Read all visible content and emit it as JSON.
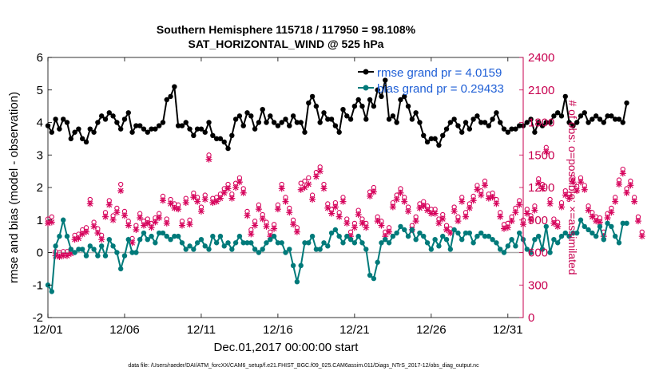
{
  "title": {
    "line1": "Southern Hemisphere 115718 / 117950 = 98.108%",
    "line2": "SAT_HORIZONTAL_WIND @ 525 hPa"
  },
  "footnote": "data file: /Users/raeder/DAI/ATM_forcXX/CAM6_setup/f.e21.FHIST_BGC.f09_025.CAM6assim.011/Diags_NTrS_2017-12/obs_diag_output.nc",
  "colors": {
    "rmse": "#000000",
    "bias": "#007a7a",
    "obs": "#d6005a",
    "zero_line": "#aaaaaa",
    "right_axis": "#c8004f",
    "legend_text": "#1f5fd6"
  },
  "chart_data": {
    "type": "line",
    "title": "Southern Hemisphere 115718 / 117950 = 98.108%",
    "subtitle": "SAT_HORIZONTAL_WIND @ 525 hPa",
    "xlabel": "Dec.01,2017 00:00:00 start",
    "ylabel": "rmse and bias (model - observation)",
    "y2label": "# of obs: o=possible; ×=assimilated",
    "xlim": [
      0,
      31
    ],
    "ylim": [
      -2,
      6
    ],
    "y2lim": [
      0,
      2400
    ],
    "xticks": [
      0,
      5,
      10,
      15,
      20,
      25,
      30
    ],
    "xticklabels": [
      "12/01",
      "12/06",
      "12/11",
      "12/16",
      "12/21",
      "12/26",
      "12/31"
    ],
    "yticks": [
      -2,
      -1,
      0,
      1,
      2,
      3,
      4,
      5,
      6
    ],
    "y2ticks": [
      0,
      300,
      600,
      900,
      1200,
      1500,
      1800,
      2100,
      2400
    ],
    "legend": {
      "position": "top-right",
      "entries": [
        "rmse grand pr = 4.0159",
        "bias grand pr = 0.29433"
      ]
    },
    "time_step_days": 0.25,
    "series": [
      {
        "name": "rmse",
        "axis": "left",
        "values": [
          3.9,
          3.7,
          4.1,
          3.8,
          4.1,
          4.0,
          3.5,
          3.7,
          3.8,
          3.5,
          3.4,
          3.8,
          3.7,
          4.0,
          4.2,
          4.1,
          4.3,
          4.2,
          4.0,
          3.8,
          4.1,
          4.3,
          3.7,
          3.9,
          3.9,
          3.8,
          3.7,
          3.8,
          3.8,
          3.9,
          4.0,
          4.7,
          4.8,
          5.1,
          3.9,
          3.9,
          4.0,
          3.8,
          3.6,
          3.8,
          3.8,
          3.7,
          4.0,
          3.6,
          3.5,
          3.5,
          3.4,
          3.2,
          3.6,
          4.1,
          4.2,
          3.9,
          4.3,
          4.2,
          3.8,
          4.0,
          4.4,
          4.0,
          4.2,
          4.0,
          3.9,
          4.0,
          4.1,
          3.9,
          4.2,
          4.0,
          4.0,
          3.7,
          4.6,
          4.8,
          4.5,
          4.0,
          4.3,
          4.1,
          4.1,
          3.9,
          3.7,
          4.4,
          4.2,
          4.1,
          4.5,
          4.7,
          4.5,
          4.1,
          4.7,
          4.5,
          5.0,
          4.8,
          5.3,
          4.1,
          4.2,
          4.0,
          4.7,
          4.8,
          4.5,
          4.1,
          4.3,
          4.0,
          3.6,
          3.4,
          3.5,
          3.5,
          3.3,
          3.6,
          3.8,
          4.0,
          4.1,
          3.9,
          3.7,
          4.0,
          3.8,
          4.1,
          4.2,
          4.0,
          4.0,
          3.9,
          4.1,
          4.3,
          4.0,
          3.8,
          3.7,
          3.8,
          3.8,
          3.9,
          3.9,
          4.0,
          4.1,
          3.7,
          4.0,
          3.9,
          4.0,
          4.0,
          4.2,
          4.3,
          4.2,
          4.8,
          4.0,
          3.9,
          4.0,
          4.2,
          4.3,
          4.0,
          4.1,
          4.2,
          4.1,
          4.0,
          4.2,
          4.2,
          4.1,
          4.1,
          4.0,
          4.6
        ]
      },
      {
        "name": "bias",
        "axis": "left",
        "values": [
          -1.0,
          -1.2,
          0.2,
          0.5,
          1.0,
          0.5,
          0.1,
          0.0,
          0.1,
          0.1,
          -0.1,
          0.2,
          0.1,
          -0.1,
          0.2,
          -0.1,
          0.4,
          0.2,
          0.0,
          -0.5,
          -0.1,
          0.4,
          0.0,
          0.0,
          0.4,
          0.6,
          0.4,
          0.5,
          0.3,
          0.6,
          0.6,
          0.5,
          0.4,
          0.5,
          0.5,
          0.3,
          0.1,
          0.2,
          0.1,
          0.3,
          0.4,
          0.2,
          0.1,
          0.5,
          0.3,
          0.5,
          0.2,
          0.3,
          0.1,
          0.3,
          0.5,
          0.3,
          0.3,
          0.3,
          0.1,
          0.0,
          0.1,
          0.3,
          0.4,
          0.5,
          0.3,
          0.3,
          0.0,
          0.1,
          -0.4,
          -0.9,
          -0.4,
          0.3,
          0.3,
          0.5,
          0.1,
          0.1,
          0.3,
          0.2,
          0.6,
          0.7,
          0.5,
          0.3,
          0.5,
          0.4,
          0.3,
          0.5,
          0.3,
          0.1,
          -0.7,
          -0.8,
          -0.3,
          0.3,
          0.4,
          0.3,
          0.5,
          0.6,
          0.8,
          0.7,
          0.5,
          0.7,
          0.4,
          0.6,
          0.5,
          0.3,
          0.1,
          0.4,
          0.2,
          0.5,
          0.4,
          0.1,
          0.7,
          0.6,
          0.4,
          0.6,
          0.6,
          0.3,
          0.5,
          0.6,
          0.5,
          0.5,
          0.4,
          0.3,
          0.1,
          0.0,
          0.2,
          0.4,
          0.2,
          0.6,
          0.4,
          0.1,
          0.0,
          0.4,
          0.5,
          0.1,
          0.8,
          0.0,
          0.4,
          0.3,
          0.5,
          0.6,
          0.5,
          0.6,
          0.6,
          1.0,
          0.8,
          0.7,
          0.6,
          0.5,
          0.8,
          0.4,
          0.9,
          0.8,
          0.5,
          0.3,
          0.9,
          0.9
        ]
      },
      {
        "name": "obs_possible",
        "axis": "right",
        "marker": "o",
        "values": [
          880,
          900,
          580,
          570,
          580,
          580,
          600,
          730,
          740,
          780,
          800,
          1060,
          850,
          790,
          730,
          940,
          1050,
          910,
          980,
          1200,
          950,
          860,
          700,
          820,
          930,
          860,
          880,
          840,
          890,
          930,
          1090,
          880,
          1060,
          1020,
          1010,
          860,
          1070,
          870,
          1120,
          1080,
          990,
          1100,
          1470,
          1070,
          1080,
          1110,
          1160,
          1200,
          1110,
          1210,
          1260,
          1160,
          950,
          780,
          860,
          1010,
          920,
          850,
          760,
          830,
          1010,
          1200,
          1080,
          980,
          870,
          800,
          1210,
          1230,
          1260,
          1100,
          1310,
          1360,
          1200,
          1020,
          970,
          1030,
          940,
          1080,
          880,
          760,
          840,
          960,
          880,
          840,
          1130,
          1170,
          900,
          860,
          760,
          800,
          1030,
          1100,
          1160,
          1080,
          990,
          820,
          900,
          1020,
          1040,
          1000,
          970,
          970,
          880,
          920,
          820,
          790,
          990,
          900,
          1080,
          940,
          1020,
          1090,
          1190,
          1140,
          1230,
          1110,
          1120,
          1060,
          940,
          830,
          840,
          900,
          980,
          1050,
          870,
          970,
          910,
          1000,
          1250,
          1200,
          1540,
          1060,
          880,
          850,
          1030,
          1140,
          1110,
          1260,
          1180,
          1260,
          1190,
          1000,
          940,
          900,
          890,
          760,
          930,
          980,
          1080,
          1240,
          1340,
          1160,
          1230,
          1080,
          900,
          760
        ]
      },
      {
        "name": "obs_assimilated",
        "axis": "right",
        "marker": "x",
        "values": [
          870,
          880,
          570,
          560,
          570,
          570,
          590,
          720,
          730,
          770,
          790,
          1050,
          840,
          780,
          720,
          930,
          1040,
          900,
          970,
          1170,
          940,
          850,
          690,
          810,
          920,
          850,
          870,
          830,
          880,
          920,
          1080,
          870,
          1050,
          1010,
          1000,
          850,
          1060,
          860,
          1110,
          1070,
          980,
          1090,
          1460,
          1060,
          1070,
          1100,
          1150,
          1190,
          1100,
          1200,
          1250,
          1150,
          940,
          770,
          850,
          1000,
          910,
          840,
          750,
          820,
          1000,
          1190,
          1070,
          970,
          860,
          790,
          1180,
          1200,
          1230,
          1090,
          1300,
          1350,
          1190,
          1010,
          960,
          1020,
          930,
          1070,
          870,
          750,
          830,
          950,
          870,
          830,
          1120,
          1160,
          890,
          850,
          750,
          790,
          1020,
          1090,
          1150,
          1070,
          980,
          810,
          890,
          1010,
          1030,
          990,
          960,
          960,
          870,
          910,
          810,
          780,
          980,
          890,
          1070,
          930,
          1010,
          1080,
          1180,
          1130,
          1220,
          1100,
          1110,
          1050,
          930,
          820,
          830,
          890,
          970,
          1040,
          860,
          960,
          900,
          990,
          1240,
          1190,
          1530,
          1050,
          870,
          840,
          1020,
          1130,
          1100,
          1250,
          1170,
          1250,
          1180,
          990,
          930,
          890,
          880,
          750,
          920,
          970,
          1070,
          1230,
          1330,
          1150,
          1220,
          1070,
          890,
          750
        ]
      }
    ]
  }
}
